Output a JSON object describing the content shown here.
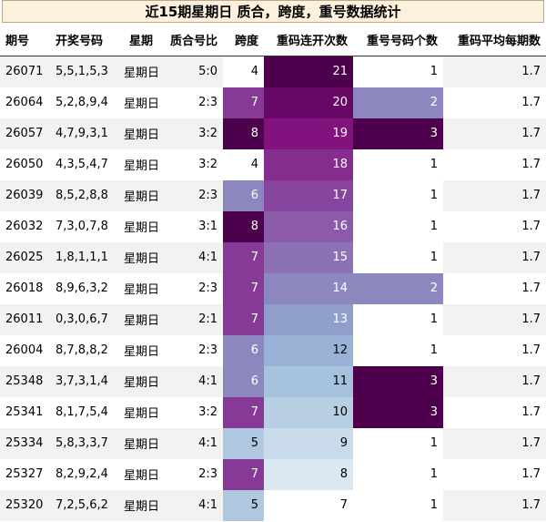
{
  "title": "近15期星期日 质合，跨度，重号数据统计",
  "table": {
    "headers": [
      "期号",
      "开奖号码",
      "星期",
      "质合号比",
      "跨度",
      "重码连开次数",
      "重号号码个数",
      "重码平均每期数"
    ],
    "rows": [
      [
        "26071",
        "5,5,1,5,3",
        "星期日",
        "5:0",
        4,
        21,
        1,
        1.7
      ],
      [
        "26064",
        "5,2,8,9,4",
        "星期日",
        "2:3",
        7,
        20,
        2,
        1.7
      ],
      [
        "26057",
        "4,7,9,3,1",
        "星期日",
        "3:2",
        8,
        19,
        3,
        1.7
      ],
      [
        "26050",
        "4,3,5,4,7",
        "星期日",
        "3:2",
        4,
        18,
        1,
        1.7
      ],
      [
        "26039",
        "8,5,2,8,8",
        "星期日",
        "2:3",
        6,
        17,
        1,
        1.7
      ],
      [
        "26032",
        "7,3,0,7,8",
        "星期日",
        "3:1",
        8,
        16,
        1,
        1.7
      ],
      [
        "26025",
        "1,8,1,1,1",
        "星期日",
        "4:1",
        7,
        15,
        1,
        1.7
      ],
      [
        "26018",
        "8,9,6,3,2",
        "星期日",
        "2:3",
        7,
        14,
        2,
        1.7
      ],
      [
        "26011",
        "0,3,0,6,7",
        "星期日",
        "2:1",
        7,
        13,
        1,
        1.7
      ],
      [
        "26004",
        "8,7,8,8,2",
        "星期日",
        "2:3",
        6,
        12,
        1,
        1.7
      ],
      [
        "25348",
        "3,7,3,1,4",
        "星期日",
        "4:1",
        6,
        11,
        3,
        1.7
      ],
      [
        "25341",
        "8,1,7,5,4",
        "星期日",
        "3:2",
        7,
        10,
        3,
        1.7
      ],
      [
        "25334",
        "5,8,3,3,7",
        "星期日",
        "4:1",
        5,
        9,
        1,
        1.7
      ],
      [
        "25327",
        "8,2,9,2,4",
        "星期日",
        "2:3",
        7,
        8,
        1,
        1.7
      ],
      [
        "25320",
        "7,2,5,6,2",
        "星期日",
        "4:1",
        5,
        7,
        1,
        1.7
      ]
    ]
  }
}
